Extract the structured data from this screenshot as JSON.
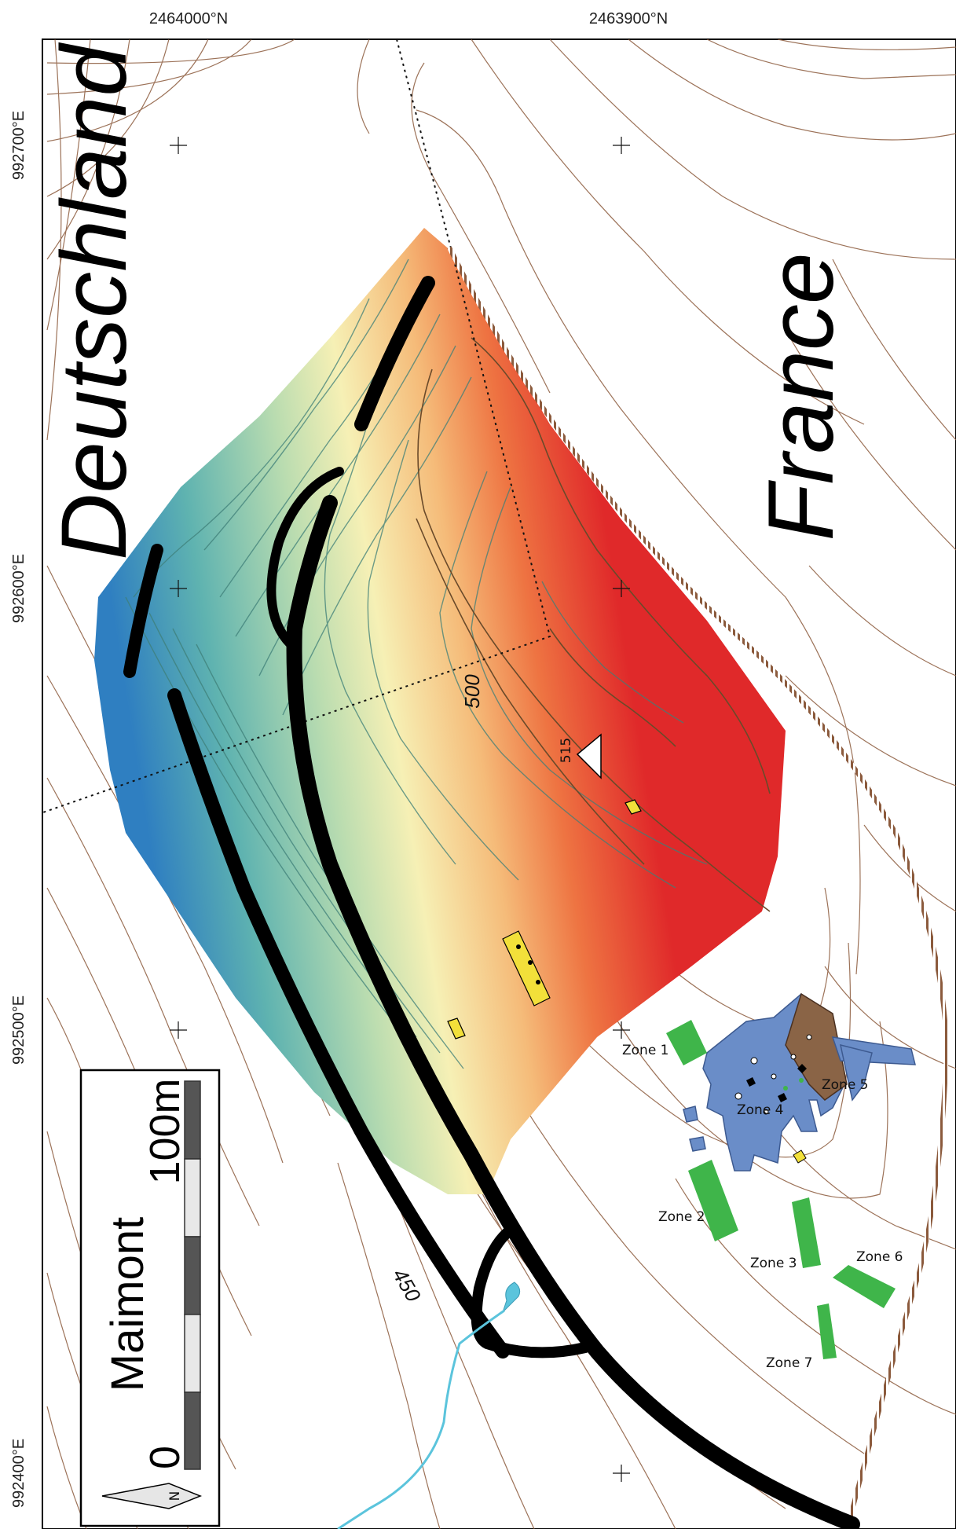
{
  "axes": {
    "top_labels": [
      "2464000°N",
      "2463900°N"
    ],
    "left_labels": [
      "992700°E",
      "992600°E",
      "992500°E",
      "992400°E"
    ]
  },
  "countries": {
    "west": "Deutschland",
    "east": "France"
  },
  "contours": {
    "label_500": "500",
    "label_450": "450",
    "summit": "515"
  },
  "zones": [
    "Zone 1",
    "Zone 2",
    "Zone 3",
    "Zone 4",
    "Zone 5",
    "Zone 6",
    "Zone 7"
  ],
  "legend": {
    "site_name": "Maimont",
    "scale_start": "0",
    "scale_end": "100m",
    "north": "N"
  },
  "colors": {
    "contour_brown": "#8b5a3c",
    "dem_low": "#2f7fc1",
    "dem_mid": "#f6f0b5",
    "dem_high": "#e0292a",
    "rampart": "#000000",
    "excavation_blue": "#6a8dc8",
    "zone_green": "#3fb54a",
    "water": "#5bc4dc",
    "finds_yellow": "#f2e03a"
  }
}
